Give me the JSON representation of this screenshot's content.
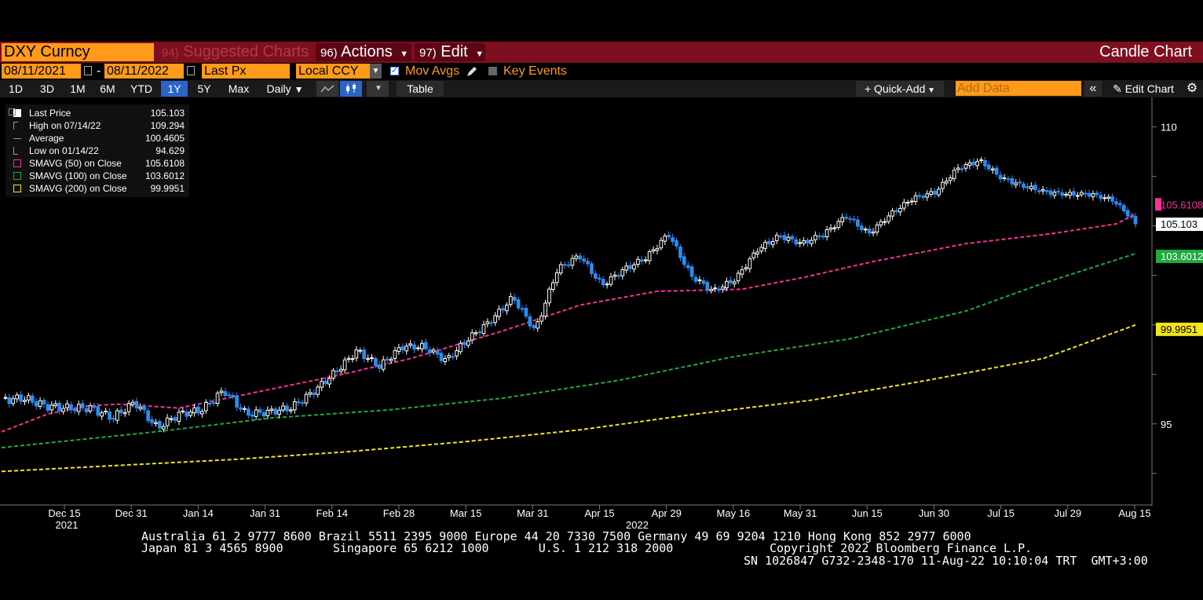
{
  "header": {
    "ticker": "DXY Curncy",
    "suggested": {
      "num": "94)",
      "label": "Suggested Charts"
    },
    "actions": {
      "num": "96)",
      "label": "Actions"
    },
    "edit": {
      "num": "97)",
      "label": "Edit"
    },
    "chart_title": "Candle Chart"
  },
  "controls": {
    "start_date": "08/11/2021",
    "end_date": "08/11/2022",
    "dash": "-",
    "price_field": "Last Px",
    "currency": "Local CCY",
    "mov_avgs_label": "Mov Avgs",
    "mov_avgs_checked": true,
    "key_events_label": "Key Events",
    "key_events_checked": false
  },
  "toolbar": {
    "periods": [
      "1D",
      "3D",
      "1M",
      "6M",
      "YTD",
      "1Y",
      "5Y",
      "Max"
    ],
    "selected_period": "1Y",
    "frequency": "Daily",
    "table_label": "Table",
    "quick_add_label": "Quick-Add",
    "add_data_placeholder": "Add Data",
    "edit_chart_label": "Edit Chart"
  },
  "legend": [
    {
      "name": "Last Price",
      "value": "105.103",
      "icon": "white-square"
    },
    {
      "name": "High on 07/14/22",
      "value": "109.294",
      "icon": "high-marker"
    },
    {
      "name": "Average",
      "value": "100.4605",
      "icon": "average-marker"
    },
    {
      "name": "Low on 01/14/22",
      "value": "94.629",
      "icon": "low-marker"
    },
    {
      "name": "SMAVG (50)  on Close",
      "value": "105.6108",
      "icon": "magenta-box"
    },
    {
      "name": "SMAVG (100)  on Close",
      "value": "103.6012",
      "icon": "green-box"
    },
    {
      "name": "SMAVG (200)  on Close",
      "value": "99.9951",
      "icon": "yellow-box"
    }
  ],
  "colors": {
    "up_candle": "#ffffff",
    "down_candle": "#2b8cf0",
    "sma50": "#ff2e9b",
    "sma100": "#1faa3f",
    "sma200": "#f2e51c",
    "menu_bar": "#7e0f1f",
    "amber": "#ff9a1a"
  },
  "chart_data": {
    "type": "candlestick",
    "ylim": [
      91.5,
      110.5
    ],
    "y_ticks": [
      95,
      110
    ],
    "y_tick_labels": [
      "95",
      "110"
    ],
    "x_ticks": [
      "Dec 15",
      "Dec 31",
      "Jan 14",
      "Jan 31",
      "Feb 14",
      "Feb 28",
      "Mar 15",
      "Mar 31",
      "Apr 15",
      "Apr 29",
      "May 16",
      "May 31",
      "Jun 15",
      "Jun 30",
      "Jul 15",
      "Jul 29",
      "Aug 15"
    ],
    "year_labels": [
      {
        "label": "2021",
        "under": "Dec 15"
      },
      {
        "label": "2022",
        "under": "Apr 15"
      }
    ],
    "price_labels": [
      {
        "text": "105.6108",
        "value": 105.6108,
        "bg": "#ff2e9b",
        "fg": "#ff2e9b"
      },
      {
        "text": "105.103",
        "value": 105.103,
        "bg": "#ffffff",
        "fg": "#000000"
      },
      {
        "text": "103.6012",
        "value": 103.6012,
        "bg": "#1faa3f",
        "fg": "#ffffff"
      },
      {
        "text": "99.9951",
        "value": 99.9951,
        "bg": "#f2e51c",
        "fg": "#000000"
      }
    ],
    "anchors": [
      [
        95.8,
        96.2
      ],
      [
        96.1,
        96.3
      ],
      [
        96.1,
        95.9
      ],
      [
        96.3,
        95.8
      ],
      [
        96.0,
        95.8
      ],
      [
        96.0,
        95.3
      ],
      [
        95.5,
        96.1
      ],
      [
        96.0,
        94.8
      ],
      [
        94.9,
        95.5
      ],
      [
        95.4,
        95.7
      ],
      [
        95.6,
        96.7
      ],
      [
        96.7,
        95.5
      ],
      [
        95.4,
        95.6
      ],
      [
        95.5,
        95.8
      ],
      [
        95.8,
        96.6
      ],
      [
        96.2,
        97.6
      ],
      [
        97.5,
        98.7
      ],
      [
        98.6,
        97.9
      ],
      [
        97.9,
        98.9
      ],
      [
        98.9,
        98.9
      ],
      [
        98.7,
        98.2
      ],
      [
        98.2,
        99.3
      ],
      [
        99.2,
        100.2
      ],
      [
        100.2,
        101.4
      ],
      [
        101.5,
        99.7
      ],
      [
        99.6,
        102.8
      ],
      [
        102.9,
        103.5
      ],
      [
        103.4,
        102.0
      ],
      [
        102.1,
        102.8
      ],
      [
        102.6,
        103.4
      ],
      [
        103.5,
        104.6
      ],
      [
        104.5,
        102.5
      ],
      [
        102.5,
        101.7
      ],
      [
        101.7,
        102.3
      ],
      [
        102.1,
        103.8
      ],
      [
        103.7,
        104.5
      ],
      [
        104.4,
        104.1
      ],
      [
        104.1,
        104.6
      ],
      [
        104.4,
        105.5
      ],
      [
        105.5,
        104.6
      ],
      [
        104.5,
        105.6
      ],
      [
        105.6,
        106.4
      ],
      [
        106.4,
        106.7
      ],
      [
        106.7,
        107.9
      ],
      [
        107.8,
        108.3
      ],
      [
        108.2,
        107.4
      ],
      [
        107.3,
        107.0
      ],
      [
        107.1,
        106.7
      ],
      [
        106.6,
        106.6
      ],
      [
        106.4,
        106.6
      ],
      [
        106.5,
        106.3
      ],
      [
        106.3,
        105.2
      ]
    ],
    "sma50": [
      [
        0,
        94.6
      ],
      [
        12,
        95.5
      ],
      [
        22,
        95.9
      ],
      [
        30,
        96.0
      ],
      [
        46,
        95.8
      ],
      [
        66,
        96.6
      ],
      [
        86,
        97.4
      ],
      [
        106,
        98.3
      ],
      [
        130,
        99.7
      ],
      [
        150,
        101.0
      ],
      [
        170,
        101.7
      ],
      [
        192,
        101.8
      ],
      [
        208,
        102.4
      ],
      [
        226,
        103.2
      ],
      [
        250,
        104.1
      ],
      [
        272,
        104.6
      ],
      [
        289,
        105.1
      ],
      [
        294,
        105.61
      ]
    ],
    "sma100": [
      [
        0,
        93.8
      ],
      [
        40,
        94.6
      ],
      [
        70,
        95.3
      ],
      [
        100,
        95.7
      ],
      [
        130,
        96.3
      ],
      [
        160,
        97.2
      ],
      [
        190,
        98.4
      ],
      [
        220,
        99.3
      ],
      [
        250,
        100.7
      ],
      [
        270,
        102.1
      ],
      [
        294,
        103.6
      ]
    ],
    "sma200": [
      [
        0,
        92.6
      ],
      [
        30,
        92.9
      ],
      [
        60,
        93.2
      ],
      [
        90,
        93.6
      ],
      [
        120,
        94.1
      ],
      [
        150,
        94.7
      ],
      [
        180,
        95.5
      ],
      [
        210,
        96.2
      ],
      [
        240,
        97.2
      ],
      [
        270,
        98.3
      ],
      [
        294,
        99.995
      ]
    ]
  },
  "footer": {
    "line1": "Australia 61 2 9777 8600 Brazil 5511 2395 9000 Europe 44 20 7330 7500 Germany 49 69 9204 1210 Hong Kong 852 2977 6000",
    "line2a": "Japan 81 3 4565 8900       Singapore 65 6212 1000       U.S. 1 212 318 2000",
    "line2b": "Copyright 2022 Bloomberg Finance L.P.",
    "line3": "SN 1026847 G732-2348-170 11-Aug-22 10:10:04 TRT  GMT+3:00"
  }
}
